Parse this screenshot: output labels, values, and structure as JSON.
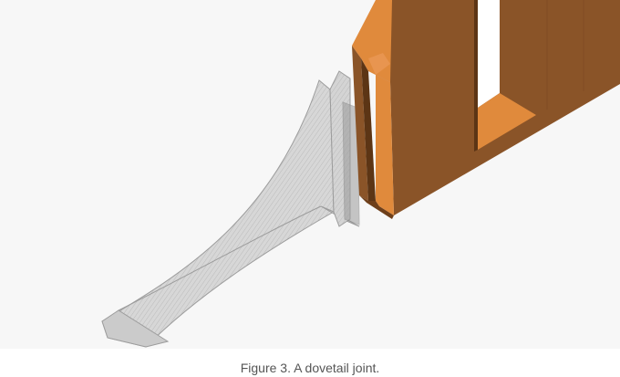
{
  "figure": {
    "caption": "Figure 3. A dovetail joint.",
    "colors": {
      "background": "#f7f7f7",
      "wood_front": "#8a5428",
      "wood_face": "#e08a3c",
      "wood_dark": "#5c3515",
      "ghost_fill": "#c8c8c8",
      "ghost_line": "#8d8d8d"
    }
  }
}
